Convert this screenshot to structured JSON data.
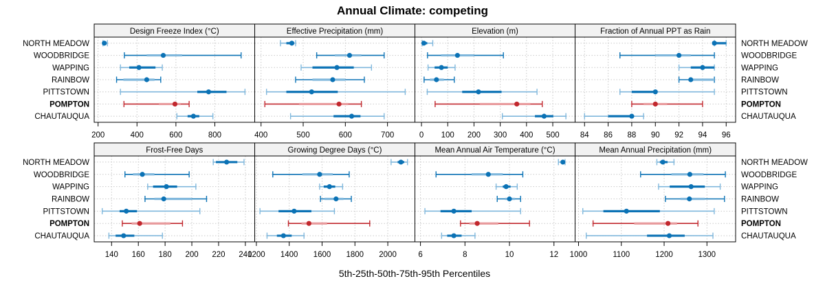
{
  "colors": {
    "blue": "#0b72b5",
    "blue_light": "#7fb7dc",
    "red": "#c1272d",
    "red_light": "#e89a9c",
    "strip_bg": "#f2f2f2",
    "grid": "#c8c8c8"
  },
  "chart_data": {
    "type": "dotplot-percentiles",
    "title": "Annual Climate: competing",
    "xlabel": "5th-25th-50th-75th-95th Percentiles",
    "ylabel": "",
    "grid": true,
    "categories": [
      "NORTH MEADOW",
      "WOODBRIDGE",
      "WAPPING",
      "RAINBOW",
      "PITTSTOWN",
      "POMPTON",
      "CHAUTAUQUA"
    ],
    "highlight": "POMPTON",
    "category_style": {
      "NORTH MEADOW": "dark-box",
      "WOODBRIDGE": "light-box",
      "WAPPING": "dark-box",
      "RAINBOW": "light-box",
      "PITTSTOWN": "dark-box",
      "POMPTON": "light-box",
      "CHAUTAUQUA": "dark-box"
    },
    "panels": [
      {
        "title": "Design Freeze Index (°C)",
        "xlim": [
          180,
          1005
        ],
        "ticks": [
          200,
          400,
          600,
          800
        ],
        "tick_labels": [
          "200",
          "400",
          "600",
          "800"
        ],
        "series": [
          {
            "name": "NORTH MEADOW",
            "p5": 225,
            "p25": 228,
            "p50": 232,
            "p75": 238,
            "p95": 248
          },
          {
            "name": "WOODBRIDGE",
            "p5": 335,
            "p25": 450,
            "p50": 535,
            "p75": 632,
            "p95": 935
          },
          {
            "name": "WAPPING",
            "p5": 315,
            "p25": 360,
            "p50": 410,
            "p75": 495,
            "p95": 530
          },
          {
            "name": "RAINBOW",
            "p5": 295,
            "p25": 330,
            "p50": 450,
            "p75": 490,
            "p95": 522
          },
          {
            "name": "PITTSTOWN",
            "p5": 315,
            "p25": 710,
            "p50": 768,
            "p75": 860,
            "p95": 955
          },
          {
            "name": "POMPTON",
            "p5": 333,
            "p25": 512,
            "p50": 595,
            "p75": 625,
            "p95": 668
          },
          {
            "name": "CHAUTAUQUA",
            "p5": 605,
            "p25": 660,
            "p50": 690,
            "p75": 720,
            "p95": 790
          }
        ]
      },
      {
        "title": "Effective Precipitation (mm)",
        "xlim": [
          385,
          765
        ],
        "ticks": [
          400,
          500,
          600,
          700
        ],
        "tick_labels": [
          "400",
          "500",
          "600",
          "700"
        ],
        "series": [
          {
            "name": "NORTH MEADOW",
            "p5": 446,
            "p25": 460,
            "p50": 473,
            "p75": 478,
            "p95": 482
          },
          {
            "name": "WOODBRIDGE",
            "p5": 532,
            "p25": 575,
            "p50": 610,
            "p75": 638,
            "p95": 692
          },
          {
            "name": "WAPPING",
            "p5": 495,
            "p25": 522,
            "p50": 580,
            "p75": 620,
            "p95": 662
          },
          {
            "name": "RAINBOW",
            "p5": 482,
            "p25": 522,
            "p50": 570,
            "p75": 600,
            "p95": 645
          },
          {
            "name": "PITTSTOWN",
            "p5": 413,
            "p25": 460,
            "p50": 520,
            "p75": 582,
            "p95": 742
          },
          {
            "name": "POMPTON",
            "p5": 409,
            "p25": 490,
            "p50": 585,
            "p75": 607,
            "p95": 638
          },
          {
            "name": "CHAUTAUQUA",
            "p5": 470,
            "p25": 572,
            "p50": 615,
            "p75": 636,
            "p95": 692
          }
        ]
      },
      {
        "title": "Elevation (m)",
        "xlim": [
          -25,
          585
        ],
        "ticks": [
          0,
          100,
          200,
          300,
          400,
          500
        ],
        "tick_labels": [
          "0",
          "100",
          "200",
          "300",
          "400",
          "500"
        ],
        "series": [
          {
            "name": "NORTH MEADOW",
            "p5": 3,
            "p25": 6,
            "p50": 9,
            "p75": 22,
            "p95": 43
          },
          {
            "name": "WOODBRIDGE",
            "p5": 23,
            "p25": 75,
            "p50": 137,
            "p75": 200,
            "p95": 312
          },
          {
            "name": "WAPPING",
            "p5": 25,
            "p25": 50,
            "p50": 76,
            "p75": 100,
            "p95": 128
          },
          {
            "name": "RAINBOW",
            "p5": 10,
            "p25": 32,
            "p50": 57,
            "p75": 85,
            "p95": 125
          },
          {
            "name": "PITTSTOWN",
            "p5": 22,
            "p25": 155,
            "p50": 217,
            "p75": 305,
            "p95": 440
          },
          {
            "name": "POMPTON",
            "p5": 52,
            "p25": 222,
            "p50": 363,
            "p75": 415,
            "p95": 460
          },
          {
            "name": "CHAUTAUQUA",
            "p5": 308,
            "p25": 432,
            "p50": 467,
            "p75": 502,
            "p95": 550
          }
        ]
      },
      {
        "title": "Fraction of Annual PPT as Rain",
        "xlim": [
          83.2,
          96.8
        ],
        "ticks": [
          84,
          86,
          88,
          90,
          92,
          94,
          96
        ],
        "tick_labels": [
          "84",
          "86",
          "88",
          "90",
          "92",
          "94",
          "96"
        ],
        "series": [
          {
            "name": "NORTH MEADOW",
            "p5": 95,
            "p25": 95,
            "p50": 95,
            "p75": 96,
            "p95": 96
          },
          {
            "name": "WOODBRIDGE",
            "p5": 87,
            "p25": 90,
            "p50": 92,
            "p75": 93,
            "p95": 95
          },
          {
            "name": "WAPPING",
            "p5": 92,
            "p25": 93,
            "p50": 94,
            "p75": 95,
            "p95": 95
          },
          {
            "name": "RAINBOW",
            "p5": 92,
            "p25": 93,
            "p50": 93,
            "p75": 95,
            "p95": 95
          },
          {
            "name": "PITTSTOWN",
            "p5": 87,
            "p25": 88,
            "p50": 90,
            "p75": 90,
            "p95": 95
          },
          {
            "name": "POMPTON",
            "p5": 88,
            "p25": 89,
            "p50": 90,
            "p75": 91,
            "p95": 94
          },
          {
            "name": "CHAUTAUQUA",
            "p5": 84,
            "p25": 86,
            "p50": 88,
            "p75": 88,
            "p95": 89
          }
        ]
      },
      {
        "title": "Frost-Free Days",
        "xlim": [
          127,
          247
        ],
        "ticks": [
          140,
          160,
          180,
          200,
          220,
          240
        ],
        "tick_labels": [
          "140",
          "160",
          "180",
          "200",
          "220",
          "240"
        ],
        "series": [
          {
            "name": "NORTH MEADOW",
            "p5": 216,
            "p25": 218,
            "p50": 226,
            "p75": 234,
            "p95": 239
          },
          {
            "name": "WOODBRIDGE",
            "p5": 150,
            "p25": 156,
            "p50": 163,
            "p75": 172,
            "p95": 198
          },
          {
            "name": "WAPPING",
            "p5": 167,
            "p25": 171,
            "p50": 181,
            "p75": 189,
            "p95": 203
          },
          {
            "name": "RAINBOW",
            "p5": 165,
            "p25": 172,
            "p50": 179,
            "p75": 200,
            "p95": 211
          },
          {
            "name": "PITTSTOWN",
            "p5": 133,
            "p25": 146,
            "p50": 151,
            "p75": 159,
            "p95": 206
          },
          {
            "name": "POMPTON",
            "p5": 148,
            "p25": 155,
            "p50": 161,
            "p75": 184,
            "p95": 193
          },
          {
            "name": "CHAUTAUQUA",
            "p5": 138,
            "p25": 143,
            "p50": 149,
            "p75": 157,
            "p95": 178
          }
        ]
      },
      {
        "title": "Growing Degree Days (°C)",
        "xlim": [
          1190,
          2165
        ],
        "ticks": [
          1200,
          1400,
          1600,
          1800,
          2000
        ],
        "tick_labels": [
          "1200",
          "1400",
          "1600",
          "1800",
          "2000"
        ],
        "series": [
          {
            "name": "NORTH MEADOW",
            "p5": 2020,
            "p25": 2060,
            "p50": 2080,
            "p75": 2100,
            "p95": 2120
          },
          {
            "name": "WOODBRIDGE",
            "p5": 1300,
            "p25": 1480,
            "p50": 1585,
            "p75": 1665,
            "p95": 1765
          },
          {
            "name": "WAPPING",
            "p5": 1585,
            "p25": 1610,
            "p50": 1645,
            "p75": 1680,
            "p95": 1725
          },
          {
            "name": "RAINBOW",
            "p5": 1590,
            "p25": 1615,
            "p50": 1685,
            "p75": 1730,
            "p95": 1778
          },
          {
            "name": "PITTSTOWN",
            "p5": 1222,
            "p25": 1335,
            "p50": 1430,
            "p75": 1535,
            "p95": 1675
          },
          {
            "name": "POMPTON",
            "p5": 1395,
            "p25": 1475,
            "p50": 1520,
            "p75": 1630,
            "p95": 1890
          },
          {
            "name": "CHAUTAUQUA",
            "p5": 1265,
            "p25": 1325,
            "p50": 1365,
            "p75": 1415,
            "p95": 1490
          }
        ]
      },
      {
        "title": "Mean Annual Air Temperature (°C)",
        "xlim": [
          5.75,
          12.95
        ],
        "ticks": [
          6,
          8,
          10,
          12
        ],
        "tick_labels": [
          "6",
          "8",
          "10",
          "12"
        ],
        "series": [
          {
            "name": "NORTH MEADOW",
            "p5": 12.2,
            "p25": 12.35,
            "p50": 12.4,
            "p75": 12.45,
            "p95": 12.5
          },
          {
            "name": "WOODBRIDGE",
            "p5": 6.7,
            "p25": 8.3,
            "p50": 9.05,
            "p75": 9.7,
            "p95": 10.6
          },
          {
            "name": "WAPPING",
            "p5": 9.4,
            "p25": 9.7,
            "p50": 9.85,
            "p75": 10.05,
            "p95": 10.35
          },
          {
            "name": "RAINBOW",
            "p5": 9.45,
            "p25": 9.8,
            "p50": 10.0,
            "p75": 10.25,
            "p95": 10.5
          },
          {
            "name": "PITTSTOWN",
            "p5": 6.2,
            "p25": 6.9,
            "p50": 7.5,
            "p75": 8.3,
            "p95": 10.5
          },
          {
            "name": "POMPTON",
            "p5": 7.8,
            "p25": 8.2,
            "p50": 8.55,
            "p75": 9.5,
            "p95": 10.9
          },
          {
            "name": "CHAUTAUQUA",
            "p5": 6.95,
            "p25": 7.2,
            "p50": 7.5,
            "p75": 7.85,
            "p95": 8.45
          }
        ]
      },
      {
        "title": "Mean Annual Precipitation (mm)",
        "xlim": [
          992,
          1367
        ],
        "ticks": [
          1000,
          1100,
          1200,
          1300
        ],
        "tick_labels": [
          "1000",
          "1100",
          "1200",
          "1300"
        ],
        "series": [
          {
            "name": "NORTH MEADOW",
            "p5": 1183,
            "p25": 1190,
            "p50": 1197,
            "p75": 1208,
            "p95": 1223
          },
          {
            "name": "WOODBRIDGE",
            "p5": 1145,
            "p25": 1217,
            "p50": 1260,
            "p75": 1292,
            "p95": 1343
          },
          {
            "name": "WAPPING",
            "p5": 1187,
            "p25": 1213,
            "p50": 1263,
            "p75": 1295,
            "p95": 1331
          },
          {
            "name": "RAINBOW",
            "p5": 1203,
            "p25": 1238,
            "p50": 1259,
            "p75": 1295,
            "p95": 1341
          },
          {
            "name": "PITTSTOWN",
            "p5": 1010,
            "p25": 1058,
            "p50": 1112,
            "p75": 1190,
            "p95": 1317
          },
          {
            "name": "POMPTON",
            "p5": 1034,
            "p25": 1130,
            "p50": 1209,
            "p75": 1230,
            "p95": 1279
          },
          {
            "name": "CHAUTAUQUA",
            "p5": 1018,
            "p25": 1160,
            "p50": 1212,
            "p75": 1248,
            "p95": 1314
          }
        ]
      }
    ]
  }
}
